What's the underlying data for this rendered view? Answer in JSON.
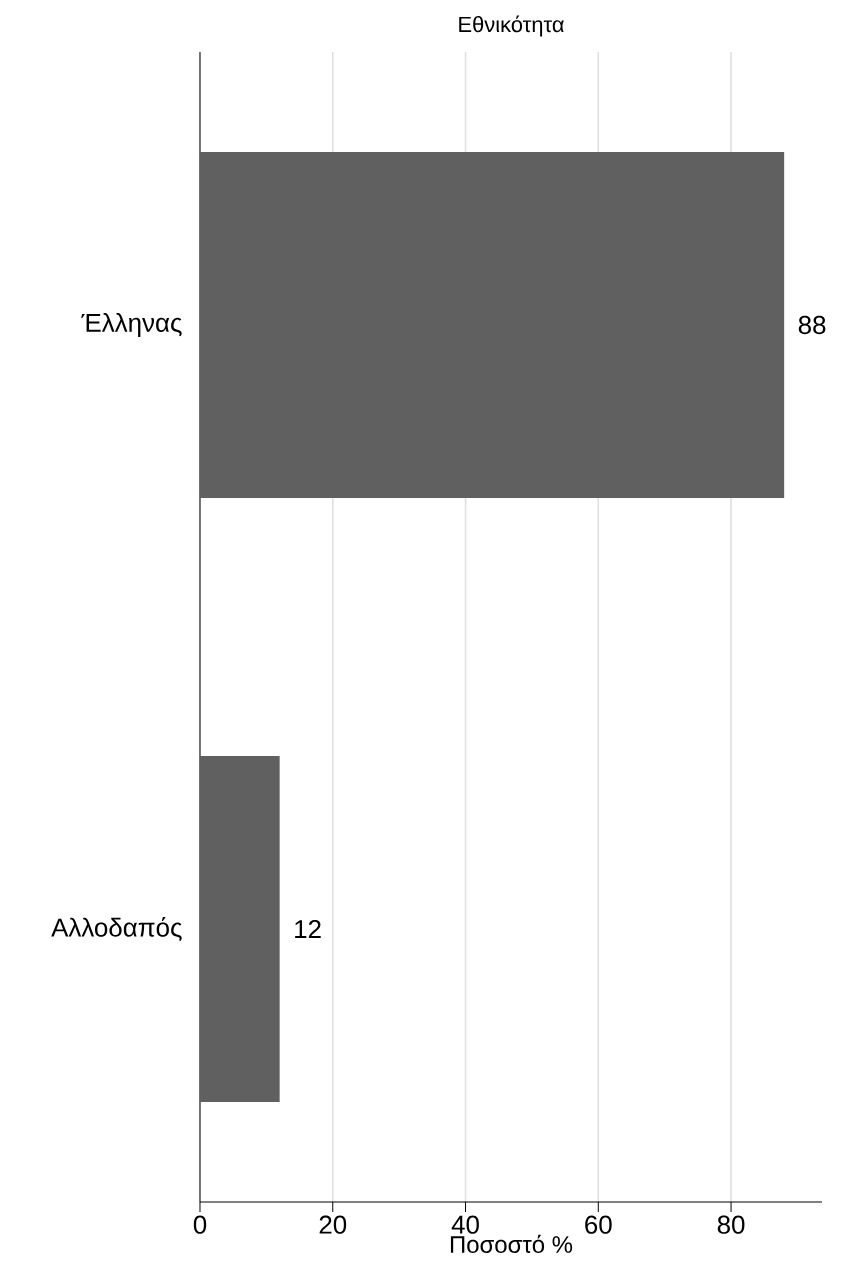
{
  "chart_data": {
    "type": "bar",
    "orientation": "horizontal",
    "title": "Εθνικότητα",
    "xlabel": "Ποσοστό %",
    "categories": [
      "Έλληνας",
      "Αλλοδαπός"
    ],
    "values": [
      88,
      12
    ],
    "color": "#606060",
    "xlim": [
      0,
      93.7
    ],
    "xticks": [
      0,
      20,
      40,
      60,
      80
    ],
    "grid": "x",
    "data_labels": true
  }
}
